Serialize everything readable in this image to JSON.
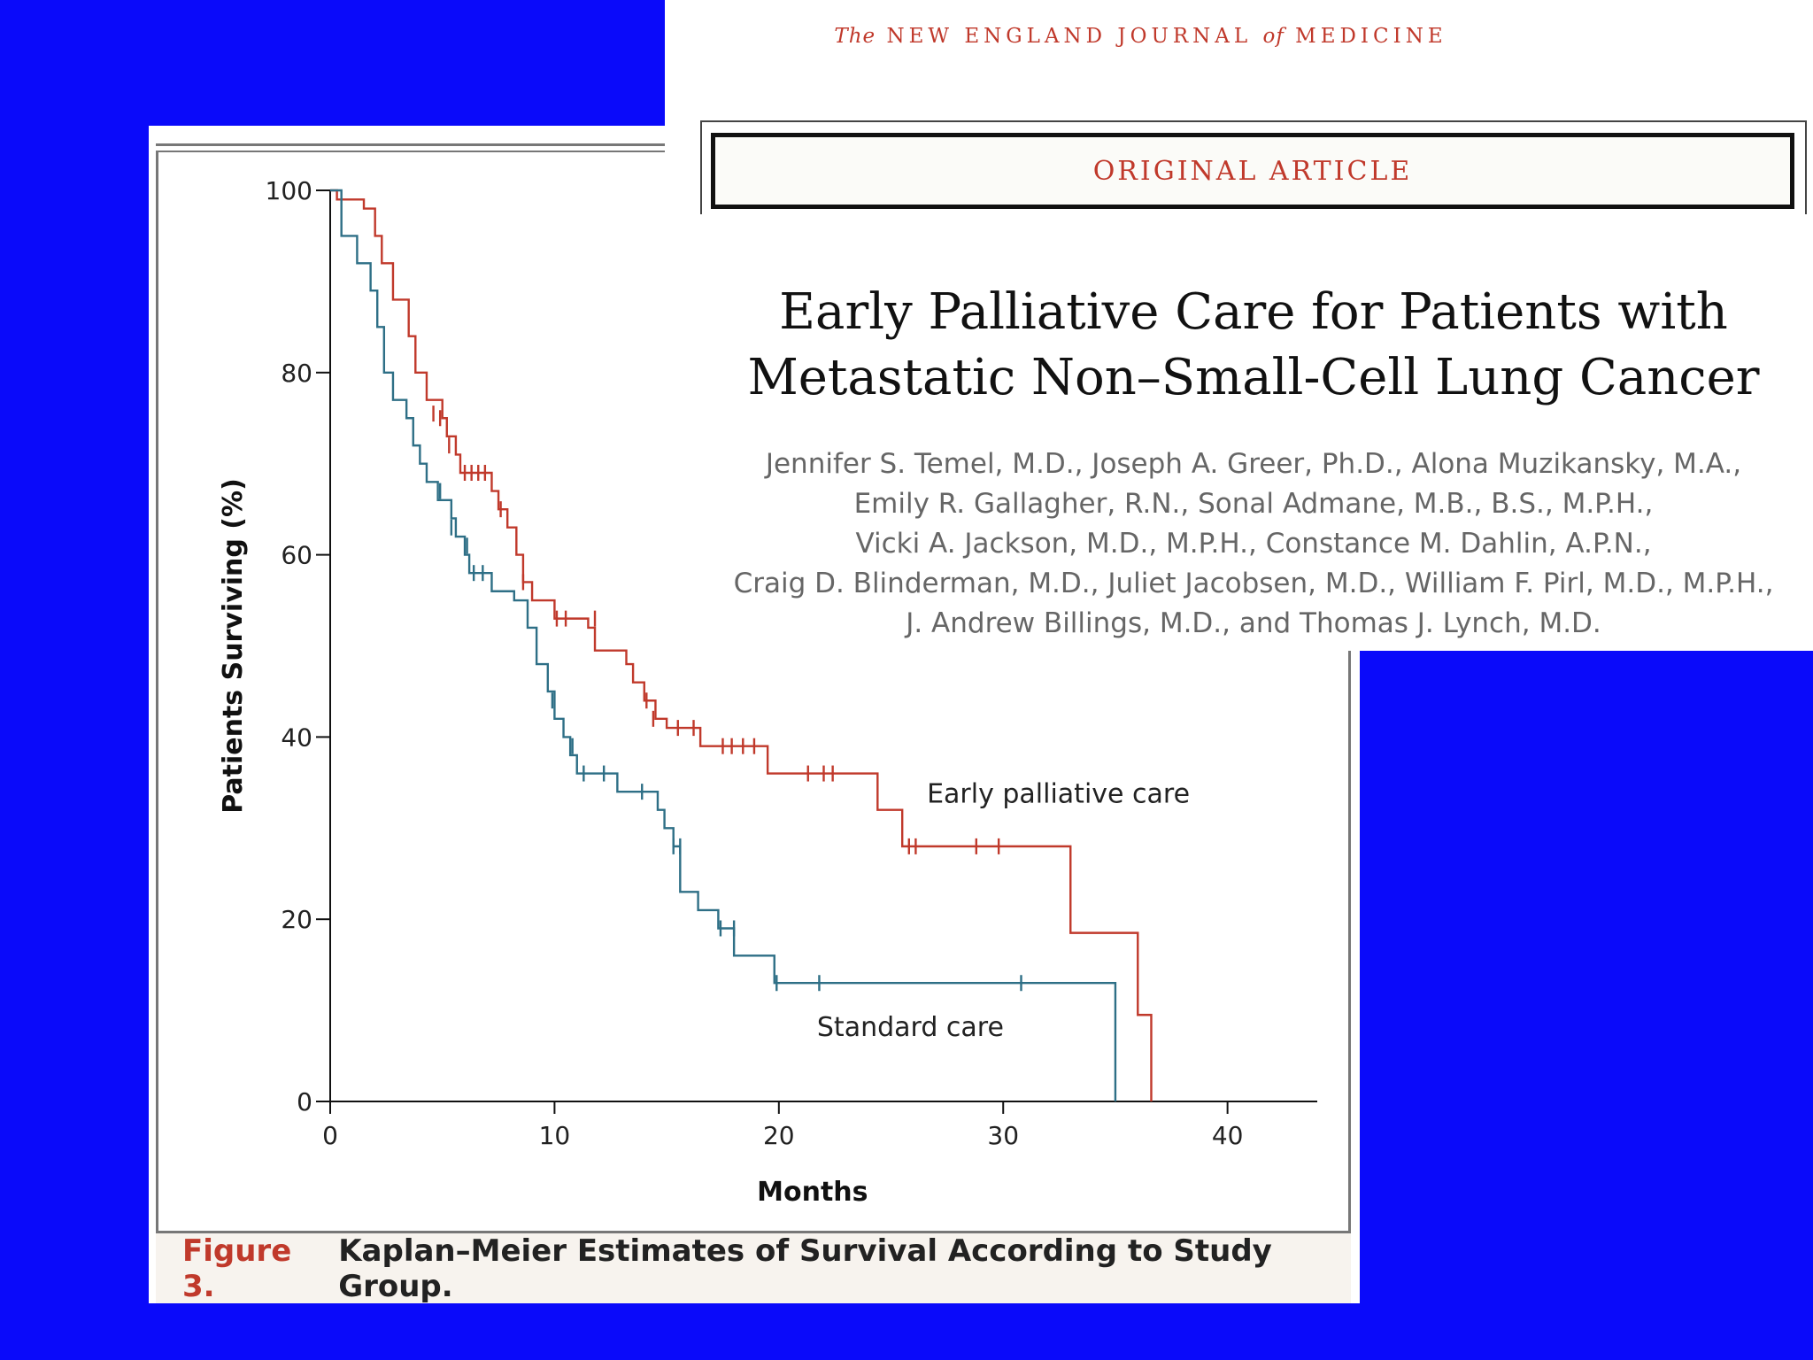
{
  "journal": {
    "the": "The",
    "name1": "NEW ENGLAND JOURNAL",
    "of": "of",
    "name2": "MEDICINE"
  },
  "article": {
    "section": "ORIGINAL ARTICLE",
    "title_line1": "Early Palliative Care for Patients with",
    "title_line2": "Metastatic Non–Small-Cell Lung Cancer",
    "authors": [
      "Jennifer S. Temel, M.D., Joseph A. Greer, Ph.D., Alona Muzikansky, M.A.,",
      "Emily R. Gallagher, R.N., Sonal Admane, M.B., B.S., M.P.H.,",
      "Vicki A. Jackson, M.D., M.P.H., Constance M. Dahlin, A.P.N.,",
      "Craig D. Blinderman, M.D., Juliet Jacobsen, M.D., William F. Pirl, M.D., M.P.H.,",
      "J. Andrew Billings, M.D., and Thomas J. Lynch, M.D."
    ]
  },
  "figure": {
    "label": "Figure 3.",
    "caption": "Kaplan–Meier Estimates of Survival According to Study Group."
  },
  "colors": {
    "background": "#0a0afa",
    "early": "#c0392b",
    "standard": "#2e6f86",
    "accent": "#c0392b"
  },
  "chart_data": {
    "type": "line",
    "title": "",
    "xlabel": "Months",
    "ylabel": "Patients Surviving (%)",
    "xlim": [
      0,
      44
    ],
    "ylim": [
      0,
      100
    ],
    "xticks": [
      0,
      10,
      20,
      30,
      40
    ],
    "yticks": [
      0,
      20,
      40,
      60,
      80,
      100
    ],
    "series": [
      {
        "name": "Early palliative care",
        "label": "Early palliative care",
        "color": "#c0392b",
        "steps": [
          [
            0,
            100
          ],
          [
            0.3,
            99
          ],
          [
            1.5,
            98
          ],
          [
            2,
            95
          ],
          [
            2.3,
            92
          ],
          [
            2.8,
            88
          ],
          [
            3.5,
            84
          ],
          [
            3.8,
            80
          ],
          [
            4.3,
            77
          ],
          [
            5,
            75
          ],
          [
            5.2,
            73
          ],
          [
            5.6,
            71
          ],
          [
            5.8,
            69
          ],
          [
            7.2,
            67
          ],
          [
            7.5,
            65
          ],
          [
            7.9,
            63
          ],
          [
            8.3,
            60
          ],
          [
            8.6,
            57
          ],
          [
            9,
            55
          ],
          [
            10,
            53
          ],
          [
            11.5,
            52
          ],
          [
            11.8,
            49.5
          ],
          [
            13.2,
            48
          ],
          [
            13.5,
            46
          ],
          [
            14,
            44
          ],
          [
            14.5,
            42
          ],
          [
            15,
            41
          ],
          [
            16.5,
            39
          ],
          [
            19.5,
            36
          ],
          [
            24.4,
            32
          ],
          [
            25.5,
            28
          ],
          [
            33,
            18.5
          ],
          [
            36,
            9.5
          ],
          [
            36.6,
            0
          ]
        ],
        "censors": [
          [
            4.6,
            75.5
          ],
          [
            4.9,
            75
          ],
          [
            5.3,
            72
          ],
          [
            6,
            69
          ],
          [
            6.3,
            69
          ],
          [
            6.6,
            69
          ],
          [
            6.9,
            69
          ],
          [
            7.6,
            65
          ],
          [
            8.6,
            57
          ],
          [
            10.1,
            53
          ],
          [
            10.5,
            53
          ],
          [
            11.8,
            53
          ],
          [
            14.1,
            44
          ],
          [
            14.4,
            42
          ],
          [
            15.5,
            41
          ],
          [
            16.2,
            41
          ],
          [
            17.5,
            39
          ],
          [
            17.9,
            39
          ],
          [
            18.4,
            39
          ],
          [
            18.9,
            39
          ],
          [
            21.3,
            36
          ],
          [
            22,
            36
          ],
          [
            22.4,
            36
          ],
          [
            25.8,
            28
          ],
          [
            26.1,
            28
          ],
          [
            28.8,
            28
          ],
          [
            29.8,
            28
          ]
        ],
        "label_position": "right-middle"
      },
      {
        "name": "Standard care",
        "label": "Standard care",
        "color": "#2e6f86",
        "steps": [
          [
            0,
            100
          ],
          [
            0.5,
            95
          ],
          [
            1.2,
            92
          ],
          [
            1.8,
            89
          ],
          [
            2.1,
            85
          ],
          [
            2.4,
            80
          ],
          [
            2.8,
            77
          ],
          [
            3.4,
            75
          ],
          [
            3.7,
            72
          ],
          [
            4,
            70
          ],
          [
            4.3,
            68
          ],
          [
            4.8,
            66
          ],
          [
            5.4,
            64
          ],
          [
            5.6,
            62
          ],
          [
            6,
            60
          ],
          [
            6.2,
            58
          ],
          [
            7.2,
            56
          ],
          [
            8.2,
            55
          ],
          [
            8.8,
            52
          ],
          [
            9.2,
            48
          ],
          [
            9.7,
            45
          ],
          [
            10,
            42
          ],
          [
            10.4,
            40
          ],
          [
            10.7,
            38
          ],
          [
            11,
            36
          ],
          [
            12.8,
            34
          ],
          [
            14.6,
            32
          ],
          [
            14.9,
            30
          ],
          [
            15.3,
            28
          ],
          [
            15.6,
            23
          ],
          [
            16.4,
            21
          ],
          [
            17.3,
            19
          ],
          [
            18,
            16
          ],
          [
            19.8,
            13
          ],
          [
            35,
            0
          ]
        ],
        "censors": [
          [
            4.9,
            67
          ],
          [
            5.4,
            63
          ],
          [
            6.1,
            61
          ],
          [
            6.4,
            58
          ],
          [
            6.8,
            58
          ],
          [
            9.9,
            44
          ],
          [
            10.8,
            39
          ],
          [
            11.3,
            36
          ],
          [
            12.2,
            36
          ],
          [
            13.9,
            34
          ],
          [
            15.3,
            28
          ],
          [
            15.6,
            28
          ],
          [
            17.4,
            19
          ],
          [
            18,
            19
          ],
          [
            19.9,
            13
          ],
          [
            21.8,
            13
          ],
          [
            30.8,
            13
          ]
        ],
        "label_position": "bottom-middle"
      }
    ]
  }
}
